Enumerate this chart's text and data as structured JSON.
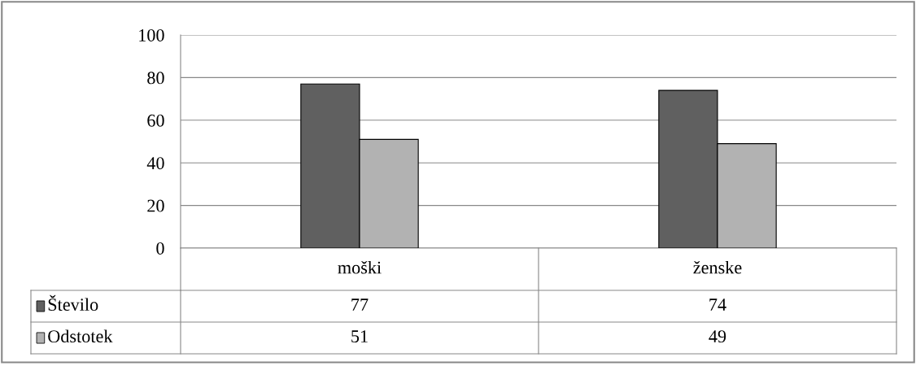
{
  "chart_data": {
    "type": "bar",
    "categories": [
      "moški",
      "ženske"
    ],
    "series": [
      {
        "name": "Število",
        "color": "#606060",
        "values": [
          77,
          74
        ]
      },
      {
        "name": "Odstotek",
        "color": "#b2b2b2",
        "values": [
          51,
          49
        ]
      }
    ],
    "ylim": [
      0,
      100
    ],
    "yticks": [
      0,
      20,
      40,
      60,
      80,
      100
    ],
    "grid": "y",
    "legend": "bottom left",
    "data_labels": true
  }
}
